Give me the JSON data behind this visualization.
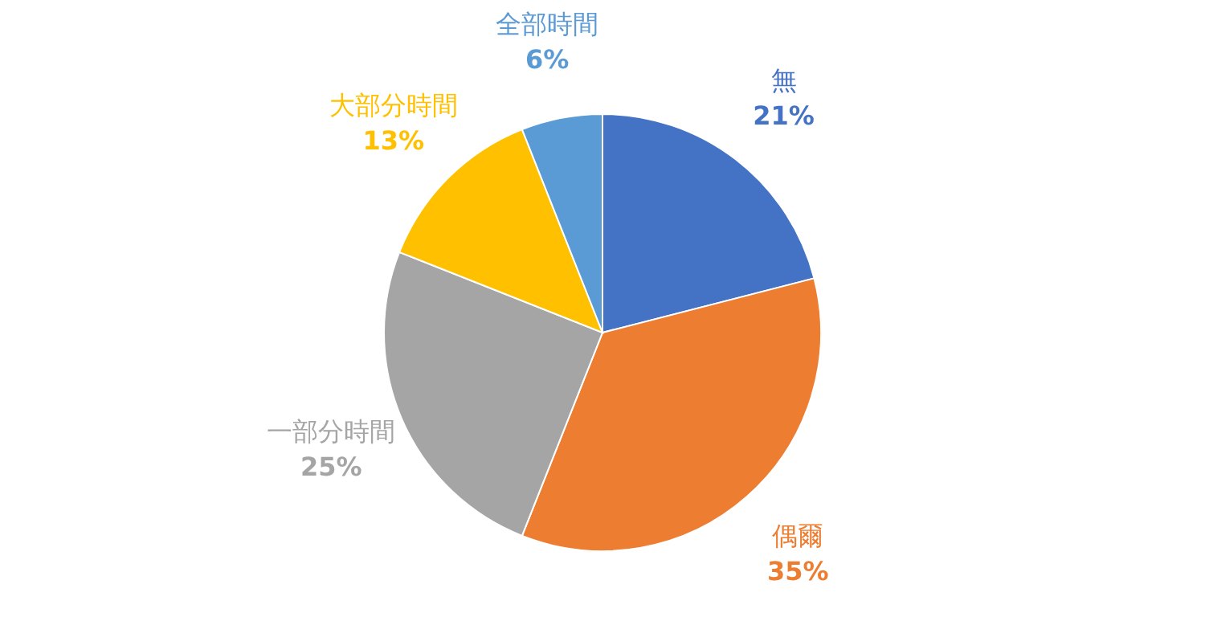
{
  "chart_data": {
    "type": "pie",
    "categories": [
      "無",
      "偶爾",
      "一部分時間",
      "大部分時間",
      "全部時間"
    ],
    "values": [
      21,
      35,
      25,
      13,
      6
    ],
    "value_labels": [
      "21%",
      "35%",
      "25%",
      "13%",
      "6%"
    ],
    "colors": [
      "#4472c4",
      "#ed7d31",
      "#a5a5a5",
      "#ffc000",
      "#5b9bd5"
    ]
  }
}
